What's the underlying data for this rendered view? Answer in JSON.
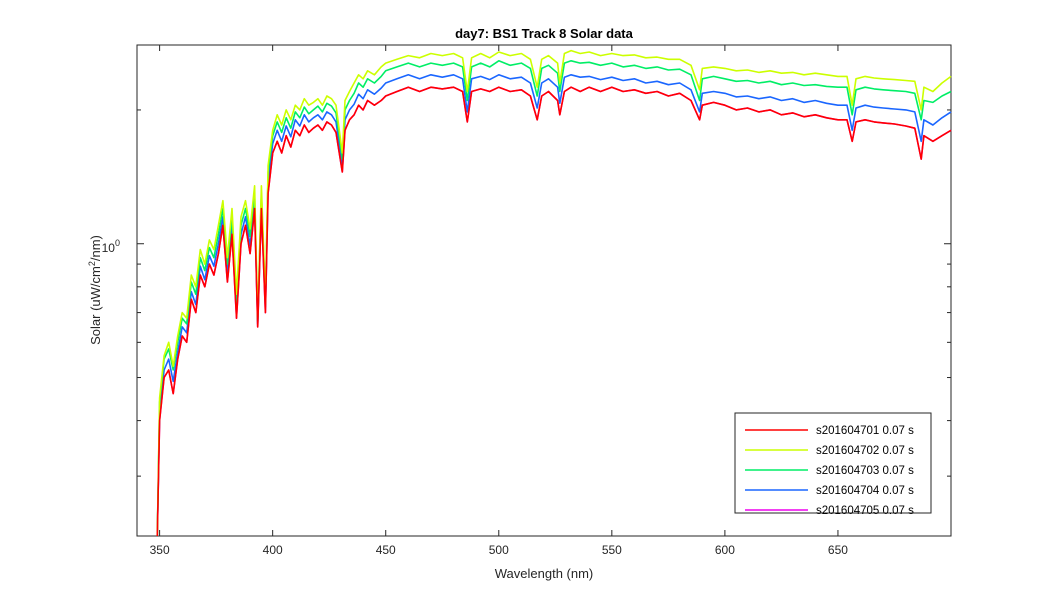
{
  "chart_data": {
    "type": "line",
    "title": "day7: BS1  Track 8 Solar data",
    "xlabel": "Wavelength (nm)",
    "ylabel": "Solar (uW/cm",
    "ylabel_sup": "2",
    "ylabel_tail": "/nm)",
    "xlim": [
      340,
      700
    ],
    "ylim": [
      0.22,
      2.8
    ],
    "yscale": "log",
    "xticks": [
      350,
      400,
      450,
      500,
      550,
      600,
      650
    ],
    "ytick_label_base": "10",
    "ytick_label_exp": "0",
    "legend_position": "bottom-right",
    "x": [
      349,
      350,
      352,
      354,
      356,
      358,
      360,
      362,
      364,
      366,
      368,
      370,
      372,
      374,
      376,
      378,
      380,
      382,
      384,
      386,
      388,
      390,
      392,
      393.4,
      395,
      396.8,
      398,
      400,
      402,
      404,
      406,
      408,
      410,
      412,
      414,
      416,
      418,
      420,
      422,
      424,
      426,
      428,
      430.8,
      432,
      434,
      436,
      438,
      440,
      442,
      445,
      448,
      450,
      455,
      460,
      465,
      470,
      475,
      480,
      484,
      486.1,
      488,
      492,
      496,
      500,
      505,
      510,
      514,
      517,
      519,
      522,
      526,
      527,
      529,
      532,
      536,
      540,
      545,
      550,
      555,
      560,
      565,
      570,
      575,
      580,
      585,
      588.8,
      590,
      595,
      600,
      605,
      610,
      615,
      620,
      625,
      630,
      635,
      640,
      645,
      650,
      654,
      656.3,
      658,
      662,
      666,
      670,
      675,
      680,
      684,
      686.8,
      688,
      692,
      696,
      700
    ],
    "series": [
      {
        "name": "s201604701 0.07 s",
        "color": "#ff0000",
        "values": [
          0.22,
          0.4,
          0.5,
          0.52,
          0.46,
          0.55,
          0.62,
          0.6,
          0.75,
          0.7,
          0.85,
          0.8,
          0.9,
          0.85,
          0.95,
          1.1,
          0.82,
          1.05,
          0.68,
          1.0,
          1.1,
          0.95,
          1.2,
          0.65,
          1.2,
          0.7,
          1.3,
          1.6,
          1.7,
          1.6,
          1.75,
          1.65,
          1.8,
          1.75,
          1.85,
          1.78,
          1.82,
          1.85,
          1.8,
          1.88,
          1.85,
          1.78,
          1.45,
          1.8,
          1.9,
          1.95,
          2.05,
          2.0,
          2.1,
          2.05,
          2.1,
          2.15,
          2.2,
          2.25,
          2.2,
          2.25,
          2.23,
          2.25,
          2.2,
          1.88,
          2.2,
          2.23,
          2.2,
          2.25,
          2.2,
          2.22,
          2.15,
          1.9,
          2.15,
          2.2,
          2.1,
          1.95,
          2.2,
          2.25,
          2.2,
          2.25,
          2.2,
          2.25,
          2.2,
          2.22,
          2.18,
          2.2,
          2.15,
          2.18,
          2.1,
          1.9,
          2.05,
          2.08,
          2.05,
          2.0,
          2.02,
          1.98,
          2.0,
          1.95,
          1.97,
          1.93,
          1.95,
          1.92,
          1.9,
          1.9,
          1.7,
          1.88,
          1.9,
          1.88,
          1.87,
          1.86,
          1.84,
          1.82,
          1.55,
          1.75,
          1.7,
          1.75,
          1.8
        ]
      },
      {
        "name": "s201604702 0.07 s",
        "color": "#ccff00",
        "values": [
          0.22,
          0.45,
          0.56,
          0.6,
          0.53,
          0.62,
          0.7,
          0.68,
          0.85,
          0.8,
          0.97,
          0.9,
          1.02,
          0.97,
          1.1,
          1.25,
          0.93,
          1.2,
          0.77,
          1.15,
          1.25,
          1.08,
          1.35,
          0.68,
          1.35,
          0.75,
          1.5,
          1.8,
          1.95,
          1.85,
          2.0,
          1.9,
          2.05,
          2.0,
          2.12,
          2.05,
          2.08,
          2.12,
          2.05,
          2.15,
          2.12,
          2.05,
          1.6,
          2.1,
          2.2,
          2.3,
          2.4,
          2.35,
          2.45,
          2.4,
          2.5,
          2.55,
          2.6,
          2.65,
          2.62,
          2.68,
          2.65,
          2.68,
          2.62,
          2.2,
          2.62,
          2.68,
          2.62,
          2.7,
          2.65,
          2.68,
          2.6,
          2.25,
          2.6,
          2.65,
          2.55,
          2.3,
          2.68,
          2.72,
          2.68,
          2.7,
          2.65,
          2.68,
          2.65,
          2.66,
          2.62,
          2.63,
          2.6,
          2.6,
          2.52,
          2.22,
          2.48,
          2.5,
          2.48,
          2.45,
          2.46,
          2.43,
          2.45,
          2.42,
          2.43,
          2.4,
          2.42,
          2.4,
          2.38,
          2.38,
          2.05,
          2.35,
          2.38,
          2.36,
          2.35,
          2.34,
          2.33,
          2.32,
          2.0,
          2.25,
          2.2,
          2.3,
          2.38
        ]
      },
      {
        "name": "s201604703 0.07 s",
        "color": "#00ee66",
        "values": [
          0.22,
          0.44,
          0.55,
          0.58,
          0.52,
          0.6,
          0.68,
          0.66,
          0.82,
          0.77,
          0.93,
          0.87,
          0.98,
          0.93,
          1.05,
          1.2,
          0.9,
          1.15,
          0.74,
          1.1,
          1.2,
          1.04,
          1.3,
          0.67,
          1.3,
          0.73,
          1.45,
          1.75,
          1.88,
          1.78,
          1.92,
          1.82,
          1.98,
          1.92,
          2.03,
          1.96,
          2.0,
          2.04,
          1.98,
          2.07,
          2.04,
          1.97,
          1.55,
          2.0,
          2.1,
          2.18,
          2.3,
          2.25,
          2.35,
          2.3,
          2.38,
          2.45,
          2.5,
          2.55,
          2.5,
          2.55,
          2.52,
          2.55,
          2.5,
          2.1,
          2.5,
          2.55,
          2.5,
          2.58,
          2.52,
          2.55,
          2.48,
          2.15,
          2.48,
          2.52,
          2.42,
          2.2,
          2.55,
          2.58,
          2.55,
          2.56,
          2.52,
          2.55,
          2.5,
          2.52,
          2.48,
          2.5,
          2.46,
          2.47,
          2.4,
          2.1,
          2.35,
          2.38,
          2.35,
          2.32,
          2.33,
          2.3,
          2.32,
          2.28,
          2.3,
          2.27,
          2.28,
          2.26,
          2.25,
          2.25,
          1.95,
          2.22,
          2.25,
          2.23,
          2.22,
          2.21,
          2.2,
          2.18,
          1.9,
          2.1,
          2.08,
          2.15,
          2.2
        ]
      },
      {
        "name": "s201604704 0.07 s",
        "color": "#1a66ff",
        "values": [
          0.22,
          0.42,
          0.52,
          0.55,
          0.49,
          0.57,
          0.65,
          0.63,
          0.78,
          0.73,
          0.89,
          0.83,
          0.94,
          0.89,
          1.0,
          1.15,
          0.86,
          1.1,
          0.71,
          1.05,
          1.15,
          0.99,
          1.25,
          0.66,
          1.25,
          0.72,
          1.38,
          1.68,
          1.8,
          1.7,
          1.84,
          1.74,
          1.9,
          1.84,
          1.95,
          1.88,
          1.92,
          1.95,
          1.9,
          1.98,
          1.95,
          1.88,
          1.5,
          1.9,
          2.0,
          2.06,
          2.17,
          2.12,
          2.22,
          2.17,
          2.24,
          2.3,
          2.35,
          2.4,
          2.35,
          2.4,
          2.37,
          2.4,
          2.35,
          1.98,
          2.35,
          2.38,
          2.34,
          2.4,
          2.35,
          2.37,
          2.3,
          2.02,
          2.3,
          2.35,
          2.25,
          2.07,
          2.37,
          2.4,
          2.37,
          2.38,
          2.34,
          2.37,
          2.33,
          2.35,
          2.3,
          2.32,
          2.28,
          2.3,
          2.22,
          1.98,
          2.18,
          2.2,
          2.18,
          2.14,
          2.15,
          2.12,
          2.14,
          2.1,
          2.12,
          2.08,
          2.1,
          2.07,
          2.05,
          2.05,
          1.8,
          2.02,
          2.05,
          2.03,
          2.02,
          2.01,
          2.0,
          1.98,
          1.7,
          1.9,
          1.85,
          1.92,
          1.98
        ]
      },
      {
        "name": "s201604705 0.07 s",
        "color": "#ee00ee",
        "values": [
          0.22,
          0.4,
          0.5,
          0.52,
          0.46,
          0.55,
          0.62,
          0.6,
          0.75,
          0.7,
          0.85,
          0.8,
          0.9,
          0.85,
          0.95,
          1.1,
          0.82,
          1.05,
          0.68,
          1.0,
          1.1,
          0.95,
          1.2,
          0.65,
          1.2,
          0.7,
          1.3,
          1.6,
          1.7,
          1.6,
          1.75,
          1.65,
          1.8,
          1.75,
          1.85,
          1.78,
          1.82,
          1.85,
          1.8,
          1.88,
          1.85,
          1.78,
          1.45,
          1.8,
          1.9,
          1.95,
          2.05,
          2.0,
          2.1,
          2.05,
          2.1,
          2.15,
          2.2,
          2.25,
          2.2,
          2.25,
          2.23,
          2.25,
          2.2,
          1.88,
          2.2,
          2.23,
          2.2,
          2.25,
          2.2,
          2.22,
          2.15,
          1.9,
          2.15,
          2.2,
          2.1,
          1.95,
          2.2,
          2.25,
          2.2,
          2.25,
          2.2,
          2.25,
          2.2,
          2.22,
          2.18,
          2.2,
          2.15,
          2.18,
          2.1,
          1.9,
          2.05,
          2.08,
          2.05,
          2.0,
          2.02,
          1.98,
          2.0,
          1.95,
          1.97,
          1.93,
          1.95,
          1.92,
          1.9,
          1.9,
          1.7,
          1.88,
          1.9,
          1.88,
          1.87,
          1.86,
          1.84,
          1.82,
          1.55,
          1.75,
          1.7,
          1.75,
          1.8
        ]
      }
    ]
  }
}
